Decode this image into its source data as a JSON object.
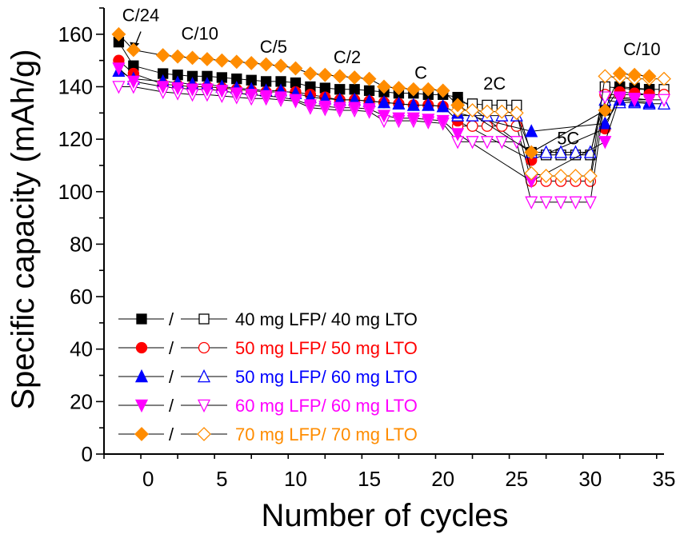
{
  "chart_data": {
    "type": "scatter",
    "xlabel": "Number of cycles",
    "ylabel": "Specific capacity (mAh/g)",
    "xlim": [
      -3,
      35
    ],
    "ylim": [
      0,
      170
    ],
    "xticks": [
      0,
      5,
      10,
      15,
      20,
      25,
      30,
      35
    ],
    "yticks": [
      0,
      20,
      40,
      60,
      80,
      100,
      120,
      140,
      160
    ],
    "rate_labels": [
      {
        "text": "C/24",
        "x": -0.5,
        "y": 165
      },
      {
        "text": "C/10",
        "x": 3.5,
        "y": 158
      },
      {
        "text": "C/5",
        "x": 8.5,
        "y": 153
      },
      {
        "text": "C/2",
        "x": 13.5,
        "y": 149
      },
      {
        "text": "C",
        "x": 18.5,
        "y": 143
      },
      {
        "text": "2C",
        "x": 23.5,
        "y": 139
      },
      {
        "text": "5C",
        "x": 28.5,
        "y": 118
      },
      {
        "text": "C/10",
        "x": 33.5,
        "y": 152
      }
    ],
    "series": [
      {
        "name": "40 mg LFP/ 40 mg LTO",
        "color": "#000000",
        "marker": "square",
        "filled_x": [
          -2,
          -1,
          1,
          2,
          3,
          4,
          5,
          6,
          7,
          8,
          9,
          10,
          11,
          12,
          13,
          14,
          15,
          16,
          17,
          18,
          19,
          20,
          21,
          26,
          31,
          32,
          33,
          34
        ],
        "filled_y": [
          157,
          148,
          145,
          144.5,
          144,
          144,
          143.5,
          143,
          142.5,
          142,
          142,
          141.5,
          140,
          139.5,
          139,
          139,
          138.5,
          138,
          137.5,
          137.5,
          137,
          137,
          136,
          115,
          131,
          140,
          139.5,
          139
        ],
        "open_x": [
          21,
          22,
          23,
          24,
          25,
          26,
          27,
          28,
          29,
          30,
          31,
          32,
          33,
          34,
          35
        ],
        "open_y": [
          134,
          133.5,
          133,
          133,
          133,
          114,
          114,
          114,
          114,
          114,
          140,
          139.5,
          139,
          139,
          139
        ]
      },
      {
        "name": "50 mg LFP/ 50 mg LTO",
        "color": "#ff0000",
        "marker": "circle",
        "filled_x": [
          -2,
          -1,
          1,
          2,
          3,
          4,
          5,
          6,
          7,
          8,
          9,
          10,
          11,
          12,
          13,
          14,
          15,
          16,
          17,
          18,
          19,
          20,
          21,
          26,
          31,
          32,
          33,
          34
        ],
        "filled_y": [
          150,
          145,
          141,
          140.5,
          140,
          140,
          139.5,
          139,
          138.5,
          138,
          138,
          138,
          137,
          136,
          135,
          135,
          134.5,
          134,
          133.5,
          133,
          133,
          132.5,
          127,
          112,
          124,
          138,
          137.5,
          137
        ],
        "open_x": [
          21,
          22,
          23,
          24,
          25,
          26,
          27,
          28,
          29,
          30,
          31,
          32,
          33,
          34,
          35
        ],
        "open_y": [
          125,
          125,
          125,
          125,
          125,
          104,
          104,
          104,
          104,
          104,
          137,
          137,
          137,
          137,
          137
        ]
      },
      {
        "name": "50 mg LFP/ 60 mg LTO",
        "color": "#0000ff",
        "marker": "triangle-up",
        "filled_x": [
          -2,
          -1,
          1,
          2,
          3,
          4,
          5,
          6,
          7,
          8,
          9,
          10,
          11,
          12,
          13,
          14,
          15,
          16,
          17,
          18,
          19,
          20,
          21,
          26,
          31,
          32,
          33,
          34
        ],
        "filled_y": [
          146,
          143,
          142,
          141.5,
          141,
          141,
          140,
          139.5,
          139,
          138.5,
          138.5,
          137.5,
          136,
          135.5,
          135,
          135,
          134.5,
          134,
          133.5,
          133,
          133,
          132.5,
          130,
          123,
          126,
          135,
          134.5,
          134
        ],
        "open_x": [
          21,
          22,
          23,
          24,
          25,
          26,
          27,
          28,
          29,
          30,
          31,
          32,
          33,
          34,
          35
        ],
        "open_y": [
          129,
          129,
          129,
          129,
          129,
          115,
          115,
          115,
          115,
          115,
          135,
          134,
          134,
          133.5,
          133.5
        ]
      },
      {
        "name": "60 mg LFP/ 60 mg LTO",
        "color": "#ff00ff",
        "marker": "triangle-down",
        "filled_x": [
          -2,
          -1,
          1,
          2,
          3,
          4,
          5,
          6,
          7,
          8,
          9,
          10,
          11,
          12,
          13,
          14,
          15,
          16,
          17,
          18,
          19,
          20,
          21,
          26,
          31,
          32,
          33,
          34
        ],
        "filled_y": [
          147,
          142,
          140,
          139.5,
          139,
          139,
          138.5,
          137.5,
          137,
          136.5,
          136,
          135,
          133,
          132.5,
          132,
          132,
          131.5,
          129,
          128,
          128,
          127.5,
          127,
          122,
          104,
          119,
          136,
          135.5,
          135
        ],
        "open_x": [
          -2,
          -1,
          1,
          2,
          3,
          4,
          5,
          6,
          7,
          8,
          9,
          10,
          11,
          12,
          13,
          14,
          15,
          16,
          17,
          18,
          19,
          20,
          21,
          22,
          23,
          24,
          25,
          26,
          27,
          28,
          29,
          30,
          31,
          32,
          33,
          34,
          35
        ],
        "open_y": [
          140,
          140,
          138,
          137.5,
          137,
          137,
          136.5,
          136,
          135.5,
          135.5,
          135,
          134.5,
          132,
          131.5,
          131,
          131,
          130.5,
          127,
          127,
          127,
          126.5,
          126,
          119,
          119,
          119,
          119,
          119,
          96,
          96,
          96,
          96,
          96,
          136,
          135.5,
          135,
          135,
          135
        ]
      },
      {
        "name": "70 mg LFP/ 70 mg LTO",
        "color": "#ff8c00",
        "marker": "diamond",
        "filled_x": [
          -2,
          -1,
          1,
          2,
          3,
          4,
          5,
          6,
          7,
          8,
          9,
          10,
          11,
          12,
          13,
          14,
          15,
          16,
          17,
          18,
          19,
          20,
          21,
          26,
          31,
          32,
          33,
          34
        ],
        "filled_y": [
          160,
          154,
          152,
          151.5,
          151,
          150.5,
          150,
          149.5,
          149,
          148.5,
          148,
          147,
          145,
          144.5,
          144,
          143.5,
          143,
          140,
          139.5,
          139,
          139,
          138.5,
          133,
          115,
          131,
          145,
          144.5,
          144
        ],
        "open_x": [
          21,
          22,
          23,
          24,
          25,
          26,
          27,
          28,
          29,
          30,
          31,
          32,
          33,
          34,
          35
        ],
        "open_y": [
          131,
          131,
          130.5,
          130.5,
          130,
          107,
          106,
          106,
          106,
          106,
          144,
          143.5,
          143,
          143,
          143
        ]
      }
    ],
    "legend": {
      "placement": "bottom-left",
      "separator": "/"
    }
  }
}
